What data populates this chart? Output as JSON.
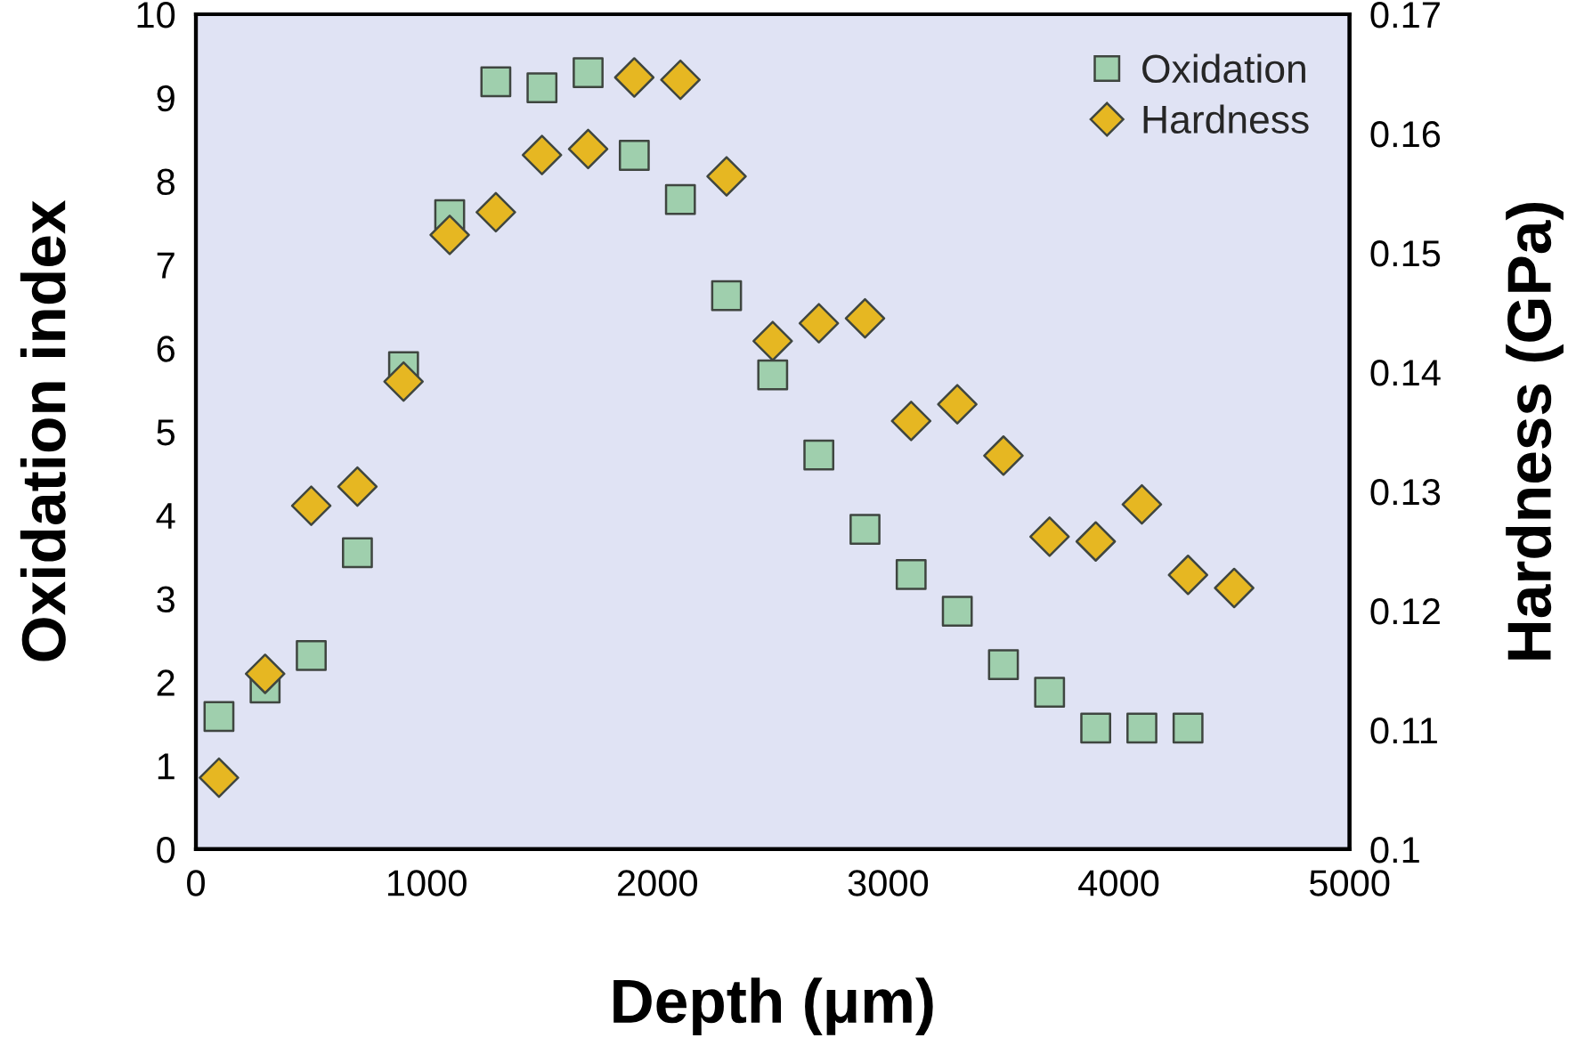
{
  "chart_data": {
    "type": "scatter",
    "xlabel": "Depth (μm)",
    "ylabel": "Oxidation index",
    "y2label": "Hardness (GPa)",
    "xlim": [
      0,
      5000
    ],
    "xticks": [
      0,
      1000,
      2000,
      3000,
      4000,
      5000
    ],
    "ylim": [
      0,
      10
    ],
    "yticks": [
      0,
      1,
      2,
      3,
      4,
      5,
      6,
      7,
      8,
      9,
      10
    ],
    "y2lim": [
      0.1,
      0.17
    ],
    "y2ticks": [
      0.1,
      0.11,
      0.12,
      0.13,
      0.14,
      0.15,
      0.16,
      0.17
    ],
    "legend": "top right",
    "series": [
      {
        "name": "Oxidation",
        "color": "#9fcfad",
        "marker": "square",
        "x": [
          100,
          300,
          500,
          700,
          900,
          1100,
          1300,
          1500,
          1700,
          1900,
          2100,
          2300,
          2500,
          2700,
          2900,
          3100,
          3300,
          3500,
          3700,
          3900,
          4100,
          4300
        ],
        "values": [
          1.59,
          1.93,
          2.32,
          3.55,
          5.78,
          7.6,
          9.19,
          9.12,
          9.3,
          8.31,
          7.78,
          6.63,
          5.68,
          4.72,
          3.83,
          3.29,
          2.85,
          2.21,
          1.88,
          1.45,
          1.45,
          1.45
        ]
      },
      {
        "name": "Hardness",
        "color": "#e6b722",
        "marker": "diamond",
        "axis": "y2",
        "x": [
          100,
          300,
          500,
          700,
          900,
          1100,
          1300,
          1500,
          1700,
          1900,
          2100,
          2300,
          2500,
          2700,
          2900,
          3100,
          3300,
          3500,
          3700,
          3900,
          4100,
          4300,
          4500
        ],
        "values": [
          0.106,
          0.1147,
          0.1288,
          0.1304,
          0.1392,
          0.1515,
          0.1534,
          0.1582,
          0.1587,
          0.1647,
          0.1645,
          0.1564,
          0.1426,
          0.1441,
          0.1445,
          0.1359,
          0.1373,
          0.133,
          0.1262,
          0.1258,
          0.1289,
          0.123,
          0.1219
        ]
      }
    ]
  }
}
